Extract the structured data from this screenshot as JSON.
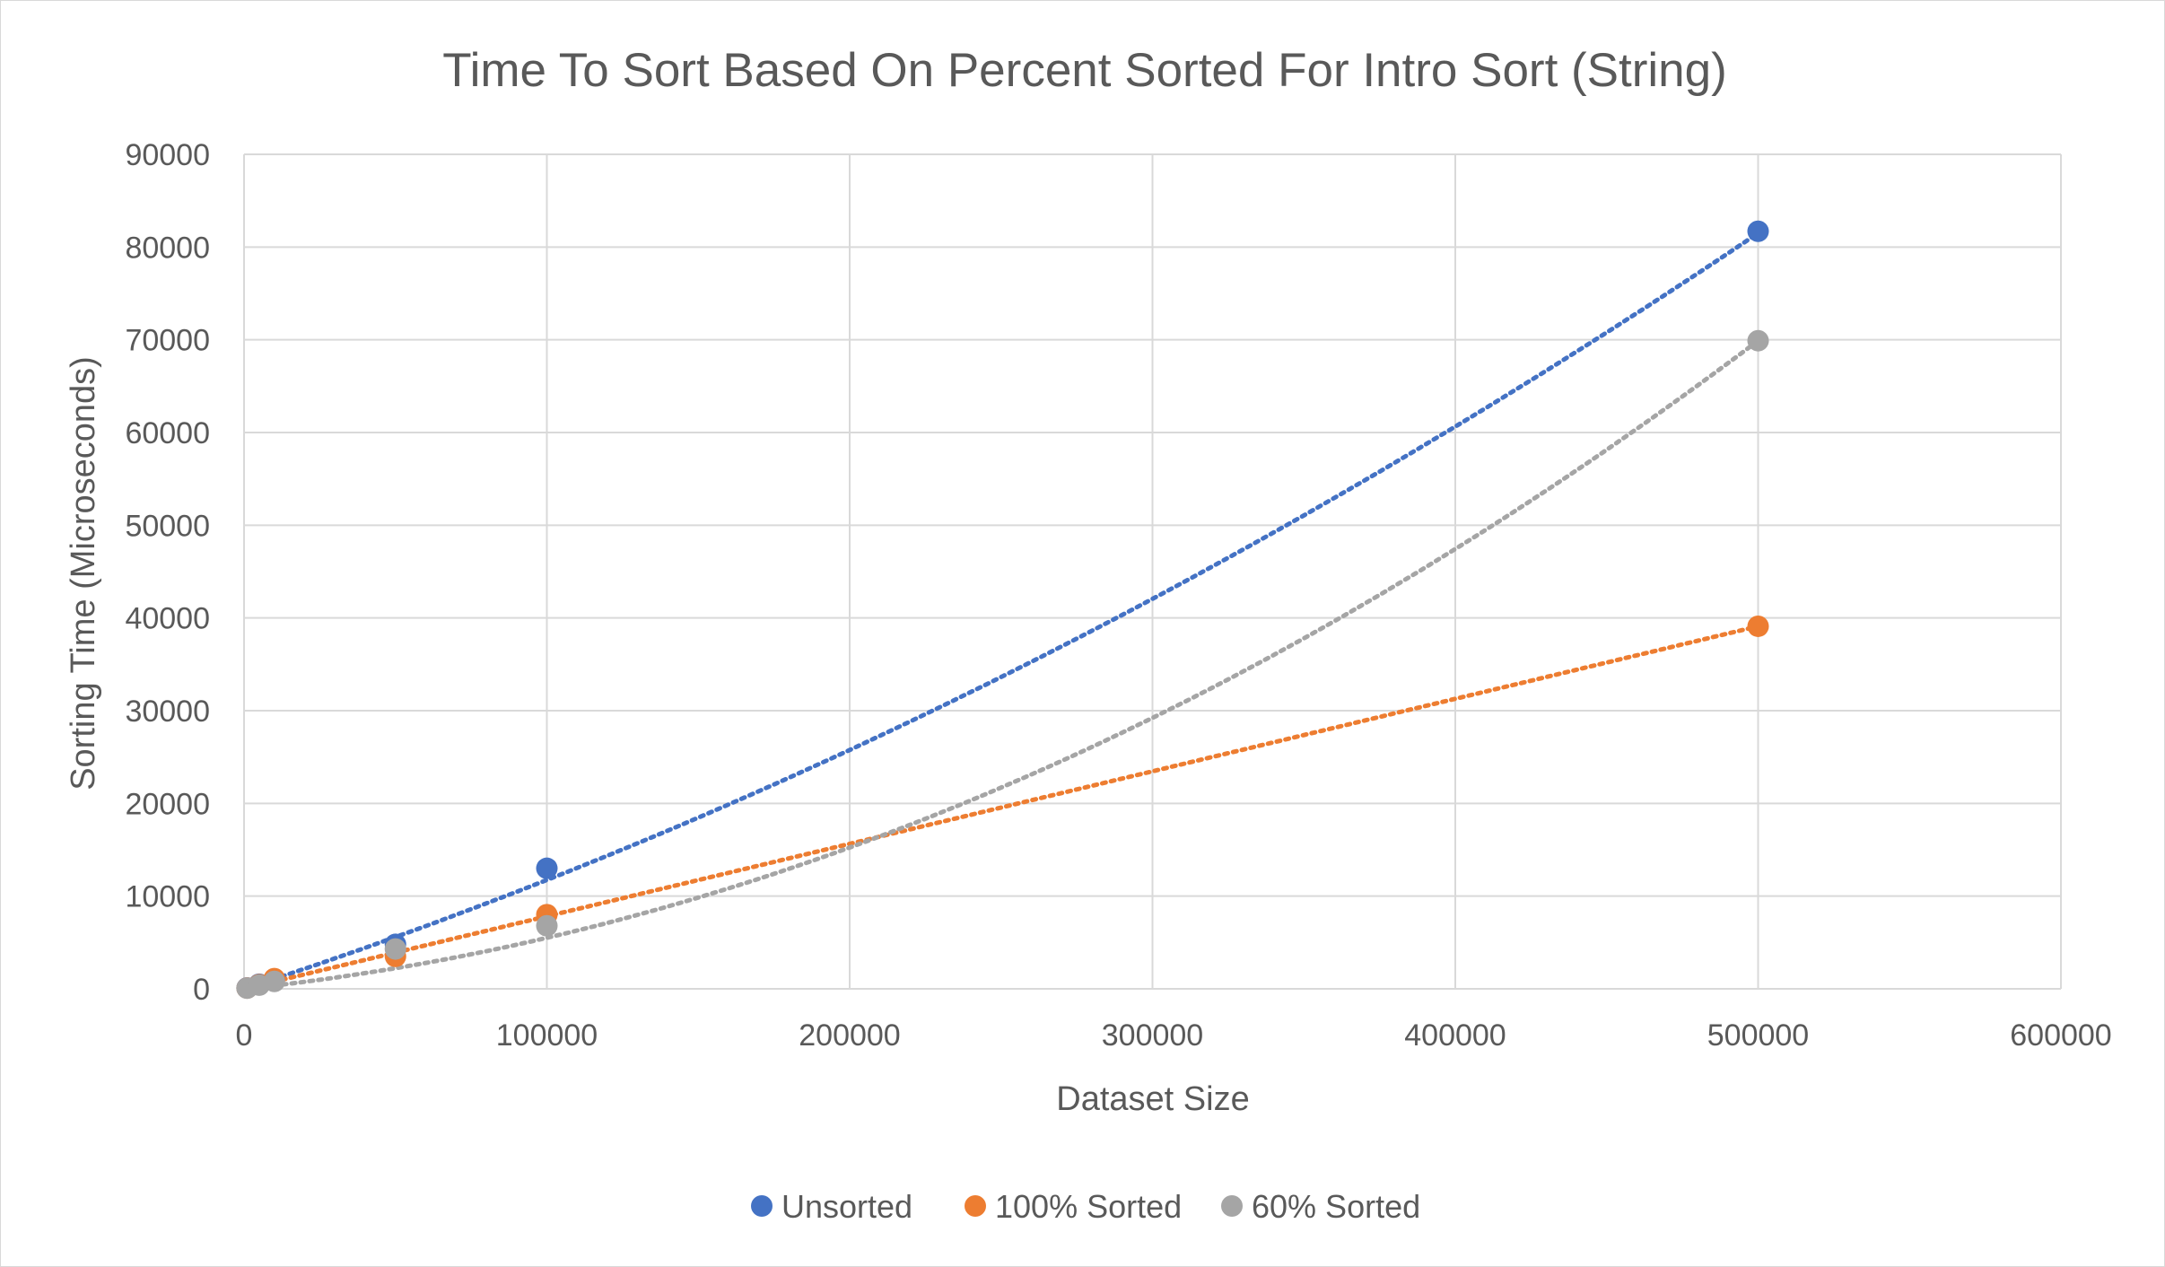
{
  "chart_data": {
    "type": "scatter",
    "title": "Time To Sort Based On Percent Sorted For Intro Sort (String)",
    "xlabel": "Dataset Size",
    "ylabel": "Sorting Time (Microseconds)",
    "xlim": [
      0,
      600000
    ],
    "ylim": [
      0,
      90000
    ],
    "x_ticks": [
      0,
      100000,
      200000,
      300000,
      400000,
      500000,
      600000
    ],
    "y_ticks": [
      0,
      10000,
      20000,
      30000,
      40000,
      50000,
      60000,
      70000,
      80000,
      90000
    ],
    "grid": true,
    "legend_position": "bottom",
    "trendline": "polynomial (order 2), dotted",
    "series": [
      {
        "name": "Unsorted",
        "color": "#4472c4",
        "x": [
          1000,
          5000,
          10000,
          50000,
          100000,
          500000
        ],
        "y": [
          100,
          500,
          1000,
          4800,
          13000,
          81700
        ],
        "trend": [
          1.14e-07,
          0.106,
          0
        ]
      },
      {
        "name": "100% Sorted",
        "color": "#ed7d31",
        "x": [
          1000,
          5000,
          10000,
          50000,
          100000,
          500000
        ],
        "y": [
          80,
          450,
          1100,
          3500,
          8000,
          39100
        ],
        "trend": [
          0,
          0.0782,
          0
        ]
      },
      {
        "name": "60% Sorted",
        "color": "#a5a5a5",
        "x": [
          1000,
          5000,
          10000,
          50000,
          100000,
          500000
        ],
        "y": [
          70,
          400,
          800,
          4300,
          6800,
          69900
        ],
        "trend": [
          2.12e-07,
          0.0338,
          0
        ]
      }
    ]
  }
}
